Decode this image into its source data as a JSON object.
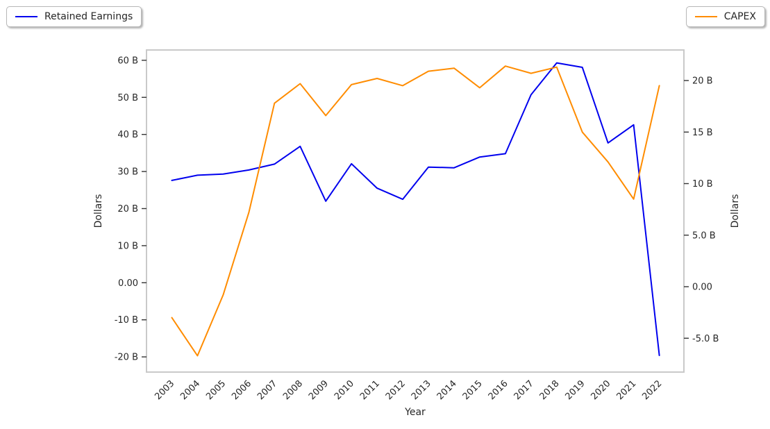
{
  "legend": {
    "retained_label": "Retained Earnings",
    "capex_label": "CAPEX"
  },
  "colors": {
    "retained": "#0000ee",
    "capex": "#ff8c00",
    "frame": "#c9c9c9",
    "tick": "#333333",
    "text": "#262626"
  },
  "chart_data": {
    "type": "line",
    "title": "",
    "xlabel": "Year",
    "ylabel_left": "Dollars",
    "ylabel_right": "Dollars",
    "x": [
      2003,
      2004,
      2005,
      2006,
      2007,
      2008,
      2009,
      2010,
      2011,
      2012,
      2013,
      2014,
      2015,
      2016,
      2017,
      2018,
      2019,
      2020,
      2021,
      2022
    ],
    "series": [
      {
        "name": "Retained Earnings",
        "axis": "left",
        "color": "#0000ee",
        "unit": "B dollars",
        "values": [
          27.6,
          29.0,
          29.3,
          30.4,
          32.0,
          36.8,
          22.0,
          32.1,
          25.5,
          22.5,
          31.2,
          31.0,
          33.9,
          34.8,
          50.7,
          59.3,
          58.1,
          37.7,
          42.6,
          -19.6
        ]
      },
      {
        "name": "CAPEX",
        "axis": "right",
        "color": "#ff8c00",
        "unit": "B dollars",
        "values": [
          -3.0,
          -6.7,
          -0.8,
          7.2,
          17.8,
          19.7,
          16.6,
          19.6,
          20.2,
          19.5,
          20.9,
          21.2,
          19.3,
          21.4,
          20.7,
          21.3,
          15.0,
          12.1,
          8.5,
          19.5
        ]
      }
    ],
    "left_axis": {
      "tick_values": [
        60,
        50,
        40,
        30,
        20,
        10,
        0,
        -10,
        -20
      ],
      "tick_labels": [
        "60 B",
        "50 B",
        "40 B",
        "30 B",
        "20 B",
        "10 B",
        "0.00",
        "-10 B",
        "-20 B"
      ],
      "range": [
        -22,
        62
      ]
    },
    "right_axis": {
      "tick_values": [
        20,
        15,
        10,
        5,
        0,
        -5
      ],
      "tick_labels": [
        "20 B",
        "15 B",
        "10 B",
        "5.0 B",
        "0.00",
        "-5.0 B"
      ],
      "range": [
        -7.5,
        22.5
      ]
    },
    "legend_position": [
      "top-left",
      "top-right"
    ],
    "grid": false
  }
}
